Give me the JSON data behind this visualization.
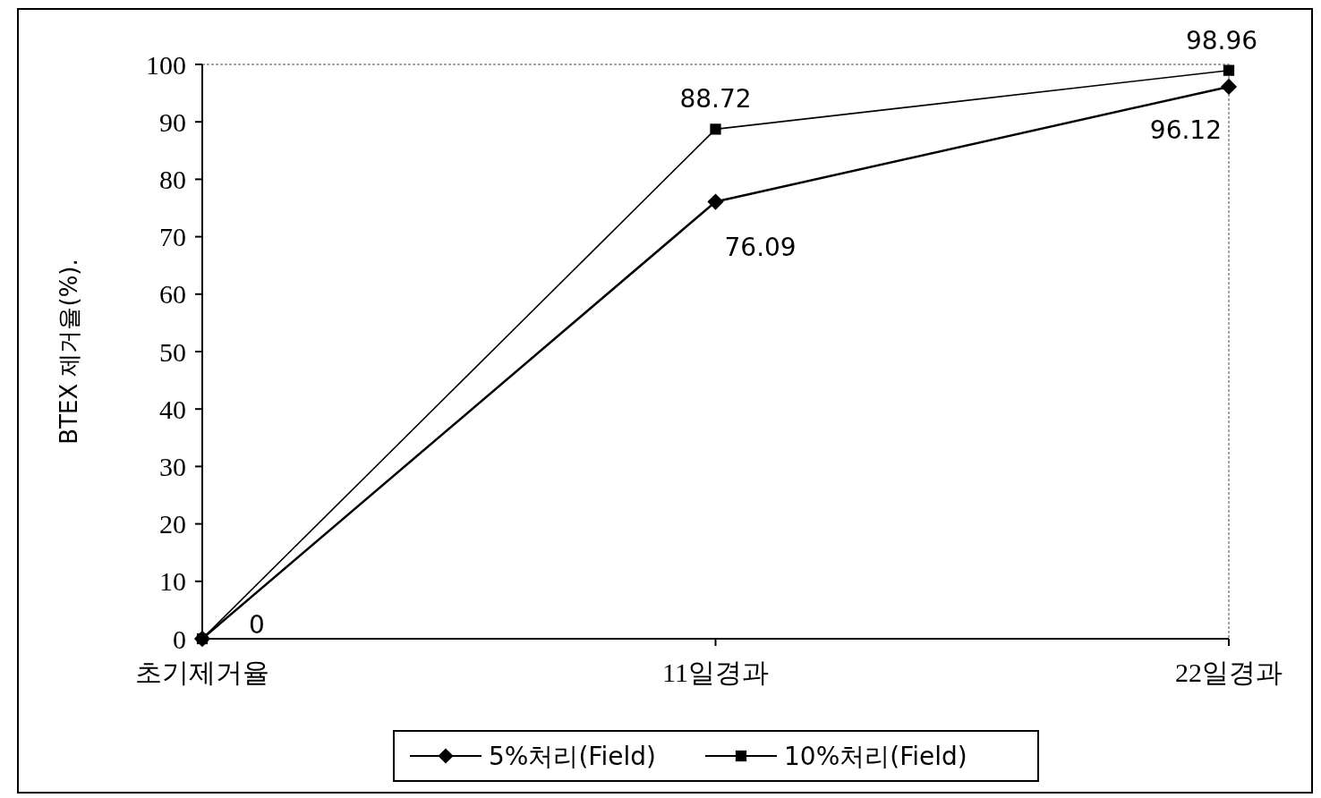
{
  "chart_data": {
    "type": "line",
    "ylabel": "BTEX 제거율(%).",
    "categories": [
      "초기제거율",
      "11일경과",
      "22일경과"
    ],
    "series": [
      {
        "name": "5%처리(Field)",
        "color": "#000000",
        "marker": "diamond",
        "values": [
          0,
          76.09,
          96.12
        ],
        "value_labels": [
          "0",
          "76.09",
          "96.12"
        ]
      },
      {
        "name": "10%처리(Field)",
        "color": "#000000",
        "marker": "square",
        "values": [
          0,
          88.72,
          98.96
        ],
        "value_labels": [
          null,
          "88.72",
          "98.96"
        ]
      }
    ],
    "ylim": [
      0,
      100
    ],
    "yticks": [
      0,
      10,
      20,
      30,
      40,
      50,
      60,
      70,
      80,
      90,
      100
    ],
    "grid": false,
    "legend": "bottom",
    "line_style": "solid"
  }
}
